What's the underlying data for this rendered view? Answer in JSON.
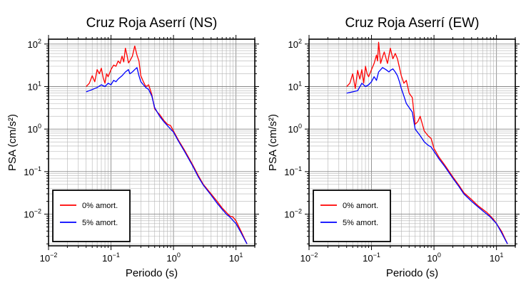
{
  "chart_data": [
    {
      "type": "line",
      "title": "Cruz Roja Aserrí (NS)",
      "xlabel": "Periodo (s)",
      "ylabel": "PSA (cm/s²)",
      "xscale": "log",
      "yscale": "log",
      "xlim": [
        0.01,
        20
      ],
      "ylim": [
        0.0018,
        130
      ],
      "grid": true,
      "legend_position": "bottom-left",
      "x_ticks": [
        {
          "base": "10",
          "exp": "−2",
          "value": 0.01
        },
        {
          "base": "10",
          "exp": "−1",
          "value": 0.1
        },
        {
          "base": "10",
          "exp": "0",
          "value": 1
        },
        {
          "base": "10",
          "exp": "1",
          "value": 10
        }
      ],
      "y_ticks": [
        {
          "base": "10",
          "exp": "−2",
          "value": 0.01
        },
        {
          "base": "10",
          "exp": "−1",
          "value": 0.1
        },
        {
          "base": "10",
          "exp": "0",
          "value": 1
        },
        {
          "base": "10",
          "exp": "1",
          "value": 10
        },
        {
          "base": "10",
          "exp": "2",
          "value": 100
        }
      ],
      "series": [
        {
          "name": "0% amort.",
          "color": "#ff0000",
          "x": [
            0.04,
            0.045,
            0.05,
            0.055,
            0.06,
            0.065,
            0.07,
            0.075,
            0.08,
            0.085,
            0.09,
            0.1,
            0.11,
            0.12,
            0.13,
            0.14,
            0.15,
            0.16,
            0.17,
            0.18,
            0.19,
            0.2,
            0.22,
            0.24,
            0.26,
            0.28,
            0.3,
            0.33,
            0.36,
            0.4,
            0.45,
            0.5,
            0.55,
            0.6,
            0.7,
            0.8,
            0.9,
            1.0,
            1.2,
            1.5,
            2.0,
            2.5,
            3.0,
            4.0,
            5.0,
            6.0,
            7.0,
            8.0,
            9.0,
            10.0,
            12.0,
            14.0,
            15.0
          ],
          "y": [
            10,
            12,
            18,
            13,
            25,
            20,
            27,
            16,
            12,
            20,
            17,
            25,
            32,
            30,
            40,
            35,
            52,
            38,
            80,
            55,
            36,
            40,
            52,
            90,
            55,
            40,
            18,
            13,
            10,
            11,
            6.5,
            3.0,
            2.5,
            2.2,
            1.6,
            1.3,
            1.2,
            0.9,
            0.55,
            0.32,
            0.15,
            0.08,
            0.05,
            0.03,
            0.02,
            0.014,
            0.011,
            0.009,
            0.0085,
            0.007,
            0.004,
            0.0025,
            0.002
          ]
        },
        {
          "name": "5% amort.",
          "color": "#0000ff",
          "x": [
            0.04,
            0.05,
            0.06,
            0.07,
            0.08,
            0.09,
            0.1,
            0.11,
            0.12,
            0.13,
            0.15,
            0.17,
            0.19,
            0.2,
            0.22,
            0.24,
            0.26,
            0.28,
            0.3,
            0.33,
            0.36,
            0.4,
            0.45,
            0.5,
            0.6,
            0.7,
            0.8,
            0.9,
            1.0,
            1.2,
            1.5,
            2.0,
            2.5,
            3.0,
            4.0,
            5.0,
            6.0,
            7.0,
            8.0,
            10.0,
            12.0,
            14.0,
            15.0
          ],
          "y": [
            7.5,
            8.5,
            9.5,
            11,
            10,
            12,
            11,
            14,
            13,
            15,
            18,
            22,
            25,
            20,
            22,
            25,
            28,
            18,
            13,
            11,
            9.5,
            8.5,
            6.0,
            3.2,
            2.0,
            1.5,
            1.2,
            1.0,
            0.85,
            0.52,
            0.3,
            0.14,
            0.075,
            0.048,
            0.028,
            0.018,
            0.013,
            0.01,
            0.0085,
            0.006,
            0.0037,
            0.0024,
            0.002
          ]
        }
      ]
    },
    {
      "type": "line",
      "title": "Cruz Roja Aserrí (EW)",
      "xlabel": "Periodo (s)",
      "ylabel": "PSA (cm/s²)",
      "xscale": "log",
      "yscale": "log",
      "xlim": [
        0.01,
        20
      ],
      "ylim": [
        0.0018,
        130
      ],
      "grid": true,
      "legend_position": "bottom-left",
      "x_ticks": [
        {
          "base": "10",
          "exp": "−2",
          "value": 0.01
        },
        {
          "base": "10",
          "exp": "−1",
          "value": 0.1
        },
        {
          "base": "10",
          "exp": "0",
          "value": 1
        },
        {
          "base": "10",
          "exp": "1",
          "value": 10
        }
      ],
      "y_ticks": [
        {
          "base": "10",
          "exp": "−2",
          "value": 0.01
        },
        {
          "base": "10",
          "exp": "−1",
          "value": 0.1
        },
        {
          "base": "10",
          "exp": "0",
          "value": 1
        },
        {
          "base": "10",
          "exp": "1",
          "value": 10
        },
        {
          "base": "10",
          "exp": "2",
          "value": 100
        }
      ],
      "series": [
        {
          "name": "0% amort.",
          "color": "#ff0000",
          "x": [
            0.04,
            0.045,
            0.05,
            0.055,
            0.06,
            0.065,
            0.07,
            0.075,
            0.08,
            0.085,
            0.09,
            0.1,
            0.11,
            0.12,
            0.125,
            0.13,
            0.14,
            0.15,
            0.16,
            0.18,
            0.2,
            0.22,
            0.24,
            0.26,
            0.28,
            0.3,
            0.33,
            0.36,
            0.4,
            0.45,
            0.5,
            0.55,
            0.6,
            0.7,
            0.8,
            0.9,
            1.0,
            1.2,
            1.5,
            2.0,
            2.5,
            3.0,
            4.0,
            5.0,
            6.0,
            7.0,
            8.0,
            9.0,
            10.0,
            12.0,
            14.0,
            15.0
          ],
          "y": [
            10,
            12,
            20,
            9,
            24,
            15,
            25,
            12,
            30,
            20,
            17,
            25,
            35,
            55,
            40,
            110,
            35,
            50,
            65,
            35,
            80,
            45,
            60,
            45,
            28,
            18,
            12,
            14,
            7,
            5.5,
            1.3,
            1.5,
            2.0,
            0.9,
            0.7,
            0.6,
            0.35,
            0.22,
            0.14,
            0.075,
            0.048,
            0.032,
            0.022,
            0.016,
            0.013,
            0.011,
            0.009,
            0.0075,
            0.006,
            0.004,
            0.0025,
            0.002
          ]
        },
        {
          "name": "5% amort.",
          "color": "#0000ff",
          "x": [
            0.04,
            0.05,
            0.06,
            0.07,
            0.08,
            0.09,
            0.1,
            0.11,
            0.12,
            0.13,
            0.15,
            0.17,
            0.19,
            0.2,
            0.22,
            0.24,
            0.26,
            0.28,
            0.3,
            0.33,
            0.36,
            0.4,
            0.45,
            0.5,
            0.6,
            0.7,
            0.8,
            0.9,
            1.0,
            1.2,
            1.5,
            2.0,
            2.5,
            3.0,
            4.0,
            5.0,
            6.0,
            7.0,
            8.0,
            10.0,
            12.0,
            14.0,
            15.0
          ],
          "y": [
            7,
            7.5,
            8,
            12,
            10,
            11,
            13,
            17,
            14,
            22,
            28,
            25,
            22,
            24,
            26,
            22,
            18,
            13,
            9,
            6,
            4,
            3.2,
            2.5,
            1.0,
            0.7,
            0.5,
            0.42,
            0.38,
            0.3,
            0.2,
            0.13,
            0.07,
            0.045,
            0.03,
            0.02,
            0.015,
            0.012,
            0.01,
            0.0085,
            0.006,
            0.0037,
            0.0024,
            0.002
          ]
        }
      ]
    }
  ]
}
